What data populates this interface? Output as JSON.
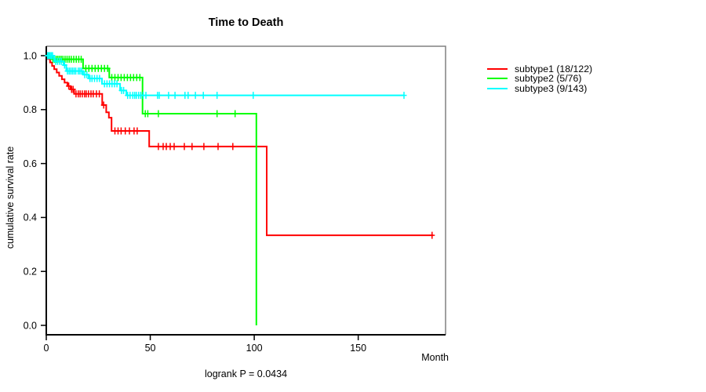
{
  "chart_data": {
    "type": "line",
    "subtype": "kaplan-meier-step",
    "title": "Time to Death",
    "xlabel": "Month",
    "ylabel": "cumulative survival rate",
    "annotation": "logrank P = 0.0434",
    "xlim": [
      0,
      192
    ],
    "ylim": [
      0.0,
      1.0
    ],
    "x_ticks": [
      0,
      50,
      100,
      150
    ],
    "x_tick_labels": [
      "0",
      "50",
      "100",
      "150"
    ],
    "y_ticks": [
      0.0,
      0.2,
      0.4,
      0.6,
      0.8,
      1.0
    ],
    "y_tick_labels": [
      "0.0",
      "0.2",
      "0.4",
      "0.6",
      "0.8",
      "1.0"
    ],
    "grid": false,
    "legend_position": "right-outside",
    "box_color_main": "#000000",
    "box_color_secondary": "#808080",
    "series": [
      {
        "name": "subtype1 (18/122)",
        "color": "#FF0000",
        "points": [
          [
            0,
            1.0
          ],
          [
            0.8,
            0.9875
          ],
          [
            1.8,
            0.975
          ],
          [
            2.8,
            0.962
          ],
          [
            3.8,
            0.95
          ],
          [
            5,
            0.9375
          ],
          [
            6.2,
            0.925
          ],
          [
            7.5,
            0.9125
          ],
          [
            8.8,
            0.9
          ],
          [
            10.2,
            0.8875
          ],
          [
            11.6,
            0.875
          ],
          [
            13.4,
            0.858
          ],
          [
            26.9,
            0.817
          ],
          [
            28.8,
            0.79
          ],
          [
            30.1,
            0.77
          ],
          [
            31.4,
            0.721
          ],
          [
            49.5,
            0.663
          ],
          [
            106,
            0.334
          ],
          [
            186,
            0.334
          ]
        ],
        "censors": [
          [
            10.8,
            0.8875
          ],
          [
            12.2,
            0.875
          ],
          [
            12.9,
            0.875
          ],
          [
            14.3,
            0.858
          ],
          [
            15.4,
            0.858
          ],
          [
            16.3,
            0.858
          ],
          [
            17.3,
            0.858
          ],
          [
            18.4,
            0.858
          ],
          [
            19.2,
            0.858
          ],
          [
            20.3,
            0.858
          ],
          [
            21.5,
            0.858
          ],
          [
            22.6,
            0.858
          ],
          [
            24.1,
            0.858
          ],
          [
            25.5,
            0.858
          ],
          [
            27.6,
            0.817
          ],
          [
            33,
            0.721
          ],
          [
            34.5,
            0.721
          ],
          [
            36,
            0.721
          ],
          [
            38,
            0.721
          ],
          [
            40,
            0.721
          ],
          [
            42.2,
            0.721
          ],
          [
            43.7,
            0.721
          ],
          [
            53.9,
            0.663
          ],
          [
            56.2,
            0.663
          ],
          [
            57.7,
            0.663
          ],
          [
            59.6,
            0.663
          ],
          [
            61.5,
            0.663
          ],
          [
            66.4,
            0.663
          ],
          [
            70.1,
            0.663
          ],
          [
            75.8,
            0.663
          ],
          [
            82.6,
            0.663
          ],
          [
            89.7,
            0.663
          ],
          [
            185.5,
            0.334
          ]
        ]
      },
      {
        "name": "subtype2 (5/76)",
        "color": "#00FF00",
        "points": [
          [
            0,
            1.0
          ],
          [
            2.5,
            0.9865
          ],
          [
            17.7,
            0.953
          ],
          [
            30.3,
            0.919
          ],
          [
            46.3,
            0.785
          ],
          [
            101,
            0.0
          ]
        ],
        "censors": [
          [
            0.8,
            1.0
          ],
          [
            1.6,
            1.0
          ],
          [
            3.2,
            0.9865
          ],
          [
            4,
            0.9865
          ],
          [
            4.8,
            0.9865
          ],
          [
            5.6,
            0.9865
          ],
          [
            6.4,
            0.9865
          ],
          [
            7.2,
            0.9865
          ],
          [
            8,
            0.9865
          ],
          [
            9,
            0.9865
          ],
          [
            10,
            0.9865
          ],
          [
            11,
            0.9865
          ],
          [
            12,
            0.9865
          ],
          [
            13.2,
            0.9865
          ],
          [
            14.4,
            0.9865
          ],
          [
            15.6,
            0.9865
          ],
          [
            16.8,
            0.9865
          ],
          [
            19,
            0.953
          ],
          [
            20.5,
            0.953
          ],
          [
            22,
            0.953
          ],
          [
            23.5,
            0.953
          ],
          [
            25,
            0.953
          ],
          [
            26.5,
            0.953
          ],
          [
            28,
            0.953
          ],
          [
            29.5,
            0.953
          ],
          [
            31.5,
            0.919
          ],
          [
            33,
            0.919
          ],
          [
            34.5,
            0.919
          ],
          [
            36,
            0.919
          ],
          [
            37.5,
            0.919
          ],
          [
            39,
            0.919
          ],
          [
            40.5,
            0.919
          ],
          [
            42,
            0.919
          ],
          [
            43.5,
            0.919
          ],
          [
            45,
            0.919
          ],
          [
            47.6,
            0.785
          ],
          [
            48.8,
            0.785
          ],
          [
            53.9,
            0.785
          ],
          [
            82.1,
            0.785
          ],
          [
            90.8,
            0.785
          ]
        ]
      },
      {
        "name": "subtype3 (9/143)",
        "color": "#00FFFF",
        "points": [
          [
            0,
            1.0
          ],
          [
            3.8,
            0.979
          ],
          [
            8.3,
            0.965
          ],
          [
            9.6,
            0.943
          ],
          [
            17.7,
            0.9295
          ],
          [
            20.4,
            0.9155
          ],
          [
            26.8,
            0.8955
          ],
          [
            35.5,
            0.871
          ],
          [
            38.5,
            0.853
          ],
          [
            172,
            0.853
          ]
        ],
        "censors": [
          [
            0.6,
            1.0
          ],
          [
            1.2,
            1.0
          ],
          [
            1.8,
            1.0
          ],
          [
            2.4,
            1.0
          ],
          [
            3,
            1.0
          ],
          [
            4.5,
            0.979
          ],
          [
            5.4,
            0.979
          ],
          [
            6.3,
            0.979
          ],
          [
            7.2,
            0.979
          ],
          [
            8.8,
            0.965
          ],
          [
            10.2,
            0.943
          ],
          [
            11,
            0.943
          ],
          [
            11.8,
            0.943
          ],
          [
            12.6,
            0.943
          ],
          [
            13.4,
            0.943
          ],
          [
            14.2,
            0.943
          ],
          [
            15.4,
            0.943
          ],
          [
            16.2,
            0.943
          ],
          [
            17,
            0.943
          ],
          [
            18.5,
            0.9295
          ],
          [
            19.5,
            0.9295
          ],
          [
            21,
            0.9155
          ],
          [
            22,
            0.9155
          ],
          [
            23.2,
            0.9155
          ],
          [
            24.4,
            0.9155
          ],
          [
            25.6,
            0.9155
          ],
          [
            28,
            0.8955
          ],
          [
            29.2,
            0.8955
          ],
          [
            30.4,
            0.8955
          ],
          [
            31.6,
            0.8955
          ],
          [
            32.8,
            0.8955
          ],
          [
            34,
            0.8955
          ],
          [
            36.2,
            0.871
          ],
          [
            37.2,
            0.871
          ],
          [
            39.1,
            0.853
          ],
          [
            40.3,
            0.853
          ],
          [
            41.6,
            0.853
          ],
          [
            42.5,
            0.853
          ],
          [
            43.3,
            0.853
          ],
          [
            44.4,
            0.853
          ],
          [
            45.4,
            0.853
          ],
          [
            46.6,
            0.853
          ],
          [
            47.9,
            0.853
          ],
          [
            53.5,
            0.853
          ],
          [
            54.3,
            0.853
          ],
          [
            58.8,
            0.853
          ],
          [
            61.9,
            0.853
          ],
          [
            66.7,
            0.853
          ],
          [
            68.2,
            0.853
          ],
          [
            71.7,
            0.853
          ],
          [
            75.5,
            0.853
          ],
          [
            82.1,
            0.853
          ],
          [
            99.5,
            0.853
          ],
          [
            172,
            0.853
          ]
        ]
      }
    ]
  }
}
